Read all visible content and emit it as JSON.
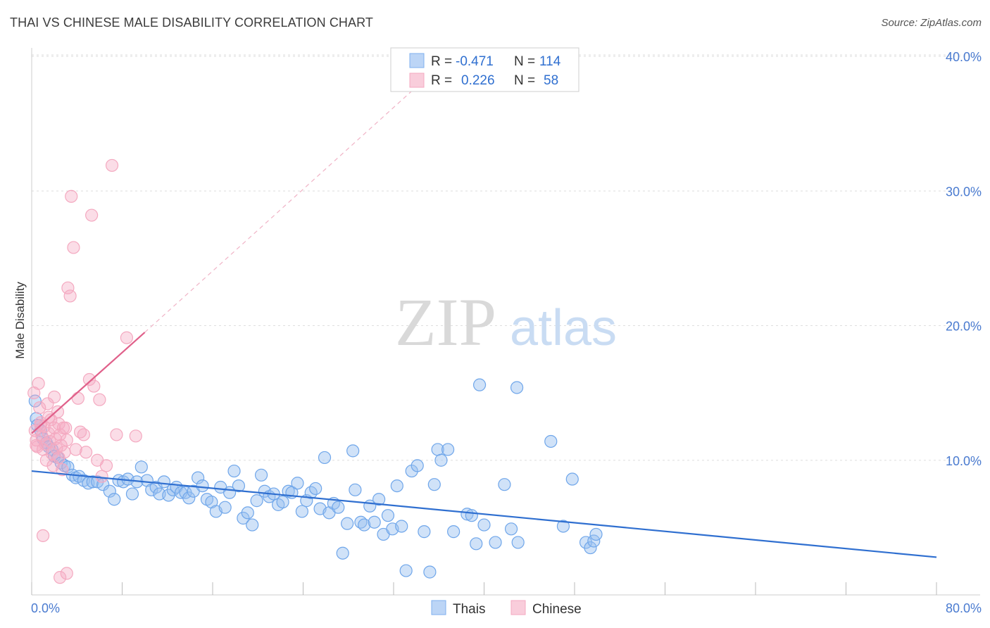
{
  "title": "THAI VS CHINESE MALE DISABILITY CORRELATION CHART",
  "source": "Source: ZipAtlas.com",
  "watermark": {
    "zip": "ZIP",
    "atlas": "atlas"
  },
  "legend": {
    "rows": [
      {
        "r_label": "R =",
        "r_value": "-0.471",
        "n_label": "N =",
        "n_value": "114",
        "color": "#7fb0ef"
      },
      {
        "r_label": "R =",
        "r_value": "0.226",
        "n_label": "N =",
        "n_value": "58",
        "color": "#f4a9c0"
      }
    ]
  },
  "bottom_legend": [
    "Thais",
    "Chinese"
  ],
  "chart_data": {
    "type": "scatter",
    "title": "THAI VS CHINESE MALE DISABILITY CORRELATION CHART",
    "xlabel": "",
    "ylabel": "Male Disability",
    "xlim": [
      0,
      80
    ],
    "ylim": [
      0,
      40
    ],
    "x_tick_labels": [
      "0.0%",
      "80.0%"
    ],
    "y_ticks": [
      10,
      20,
      30,
      40
    ],
    "y_tick_labels": [
      "10.0%",
      "20.0%",
      "30.0%",
      "40.0%"
    ],
    "grid": true,
    "legend_position": "top-center",
    "series": [
      {
        "name": "Thais",
        "color": "#6fa6ea",
        "line_color": "#2f6fd0",
        "trend": {
          "x": [
            0,
            80
          ],
          "y": [
            9.2,
            2.8
          ]
        },
        "points": [
          [
            0.3,
            14.4
          ],
          [
            0.4,
            13.1
          ],
          [
            0.5,
            12.6
          ],
          [
            0.8,
            12.2
          ],
          [
            1.0,
            11.6
          ],
          [
            1.3,
            11.3
          ],
          [
            1.5,
            11.0
          ],
          [
            1.8,
            10.8
          ],
          [
            2.0,
            10.3
          ],
          [
            2.3,
            10.2
          ],
          [
            2.6,
            9.8
          ],
          [
            2.9,
            9.6
          ],
          [
            3.2,
            9.5
          ],
          [
            3.6,
            8.9
          ],
          [
            3.9,
            8.7
          ],
          [
            4.2,
            8.8
          ],
          [
            4.6,
            8.5
          ],
          [
            5.0,
            8.3
          ],
          [
            5.4,
            8.4
          ],
          [
            5.8,
            8.4
          ],
          [
            6.3,
            8.2
          ],
          [
            6.9,
            7.7
          ],
          [
            7.3,
            7.1
          ],
          [
            7.7,
            8.5
          ],
          [
            8.1,
            8.4
          ],
          [
            8.5,
            8.6
          ],
          [
            8.9,
            7.5
          ],
          [
            9.3,
            8.4
          ],
          [
            9.7,
            9.5
          ],
          [
            10.2,
            8.5
          ],
          [
            10.6,
            7.8
          ],
          [
            11.0,
            8.0
          ],
          [
            11.3,
            7.5
          ],
          [
            11.7,
            8.4
          ],
          [
            12.1,
            7.4
          ],
          [
            12.5,
            7.8
          ],
          [
            12.8,
            8.0
          ],
          [
            13.2,
            7.6
          ],
          [
            13.6,
            7.6
          ],
          [
            13.9,
            7.2
          ],
          [
            14.3,
            7.7
          ],
          [
            14.7,
            8.7
          ],
          [
            15.1,
            8.1
          ],
          [
            15.5,
            7.1
          ],
          [
            15.9,
            6.9
          ],
          [
            16.3,
            6.2
          ],
          [
            16.7,
            8.0
          ],
          [
            17.1,
            6.5
          ],
          [
            17.5,
            7.6
          ],
          [
            17.9,
            9.2
          ],
          [
            18.3,
            8.1
          ],
          [
            18.7,
            5.7
          ],
          [
            19.1,
            6.1
          ],
          [
            19.5,
            5.2
          ],
          [
            19.9,
            7.0
          ],
          [
            20.3,
            8.9
          ],
          [
            20.6,
            7.7
          ],
          [
            21.0,
            7.3
          ],
          [
            21.4,
            7.5
          ],
          [
            21.8,
            6.7
          ],
          [
            22.2,
            6.9
          ],
          [
            22.7,
            7.7
          ],
          [
            23.0,
            7.6
          ],
          [
            23.5,
            8.3
          ],
          [
            23.9,
            6.2
          ],
          [
            24.3,
            7.0
          ],
          [
            24.7,
            7.6
          ],
          [
            25.1,
            7.9
          ],
          [
            25.5,
            6.4
          ],
          [
            25.9,
            10.2
          ],
          [
            26.3,
            6.1
          ],
          [
            26.7,
            6.8
          ],
          [
            27.1,
            6.5
          ],
          [
            27.5,
            3.1
          ],
          [
            27.9,
            5.3
          ],
          [
            28.4,
            10.7
          ],
          [
            28.6,
            7.8
          ],
          [
            29.1,
            5.4
          ],
          [
            29.4,
            5.2
          ],
          [
            29.9,
            6.6
          ],
          [
            30.3,
            5.4
          ],
          [
            30.7,
            7.1
          ],
          [
            31.1,
            4.5
          ],
          [
            31.5,
            5.9
          ],
          [
            31.9,
            4.9
          ],
          [
            32.3,
            8.1
          ],
          [
            32.7,
            5.1
          ],
          [
            33.1,
            1.8
          ],
          [
            33.6,
            9.2
          ],
          [
            34.1,
            9.6
          ],
          [
            34.7,
            4.7
          ],
          [
            35.2,
            1.7
          ],
          [
            35.6,
            8.2
          ],
          [
            35.9,
            10.8
          ],
          [
            36.2,
            10.0
          ],
          [
            36.8,
            10.8
          ],
          [
            37.3,
            4.7
          ],
          [
            38.5,
            6.0
          ],
          [
            38.9,
            5.9
          ],
          [
            39.3,
            3.8
          ],
          [
            39.6,
            15.6
          ],
          [
            40.0,
            5.2
          ],
          [
            41.0,
            3.9
          ],
          [
            41.8,
            8.2
          ],
          [
            42.4,
            4.9
          ],
          [
            42.9,
            15.4
          ],
          [
            43.0,
            3.9
          ],
          [
            45.9,
            11.4
          ],
          [
            47.0,
            5.1
          ],
          [
            47.8,
            8.6
          ],
          [
            49.0,
            3.9
          ],
          [
            49.4,
            3.5
          ],
          [
            49.7,
            4.0
          ],
          [
            49.9,
            4.5
          ]
        ]
      },
      {
        "name": "Chinese",
        "color": "#f4a9c0",
        "line_color": "#e0608a",
        "trend": {
          "x": [
            0,
            10
          ],
          "y": [
            12.0,
            19.5
          ]
        },
        "trend_extension": {
          "x": [
            10,
            34.5
          ],
          "y": [
            19.5,
            38.1
          ]
        },
        "points": [
          [
            0.2,
            15.0
          ],
          [
            0.3,
            12.2
          ],
          [
            0.4,
            11.5
          ],
          [
            0.5,
            11.0
          ],
          [
            0.6,
            15.7
          ],
          [
            0.7,
            13.9
          ],
          [
            0.8,
            12.8
          ],
          [
            0.9,
            11.8
          ],
          [
            1.0,
            10.8
          ],
          [
            1.1,
            12.5
          ],
          [
            1.2,
            11.2
          ],
          [
            1.3,
            10.0
          ],
          [
            1.4,
            14.2
          ],
          [
            1.5,
            12.0
          ],
          [
            1.6,
            11.4
          ],
          [
            1.7,
            13.0
          ],
          [
            1.8,
            10.5
          ],
          [
            1.9,
            9.6
          ],
          [
            2.0,
            12.4
          ],
          [
            2.1,
            11.6
          ],
          [
            2.2,
            10.9
          ],
          [
            2.3,
            13.6
          ],
          [
            2.4,
            12.7
          ],
          [
            2.5,
            11.9
          ],
          [
            2.6,
            11.1
          ],
          [
            2.7,
            9.3
          ],
          [
            2.8,
            12.4
          ],
          [
            2.9,
            10.6
          ],
          [
            3.0,
            12.4
          ],
          [
            3.1,
            11.5
          ],
          [
            3.2,
            22.8
          ],
          [
            3.4,
            22.2
          ],
          [
            3.5,
            29.6
          ],
          [
            3.7,
            25.8
          ],
          [
            3.9,
            10.8
          ],
          [
            4.1,
            14.6
          ],
          [
            4.3,
            12.1
          ],
          [
            4.6,
            11.9
          ],
          [
            4.8,
            10.6
          ],
          [
            5.1,
            16.0
          ],
          [
            5.3,
            28.2
          ],
          [
            5.5,
            15.5
          ],
          [
            5.8,
            10.0
          ],
          [
            6.0,
            14.5
          ],
          [
            6.2,
            8.8
          ],
          [
            6.6,
            9.6
          ],
          [
            7.1,
            31.9
          ],
          [
            7.5,
            11.9
          ],
          [
            8.4,
            19.1
          ],
          [
            9.2,
            11.8
          ],
          [
            1.0,
            4.4
          ],
          [
            2.5,
            1.3
          ],
          [
            3.1,
            1.6
          ],
          [
            0.8,
            12.6
          ],
          [
            1.5,
            13.2
          ],
          [
            2.0,
            14.7
          ],
          [
            0.4,
            11.1
          ],
          [
            2.4,
            10.2
          ]
        ]
      }
    ]
  }
}
